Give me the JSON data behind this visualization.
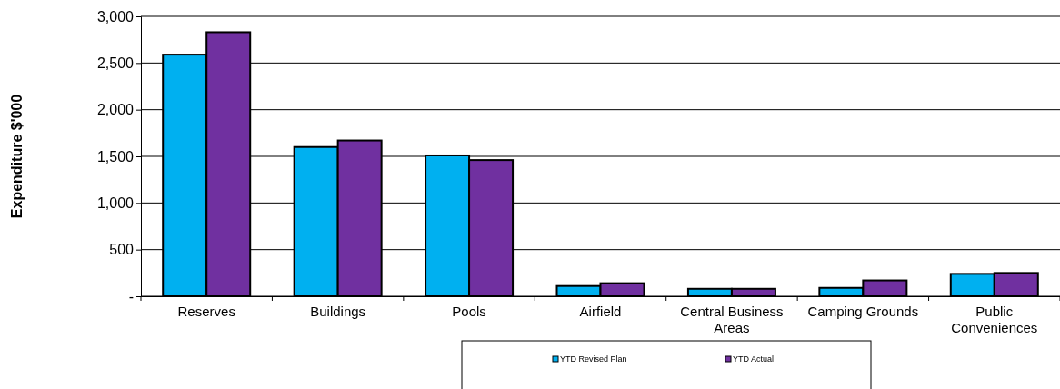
{
  "chart_data": {
    "type": "bar",
    "ylabel": "Expenditure $'000",
    "categories": [
      "Reserves",
      "Buildings",
      "Pools",
      "Airfield",
      "Central Business Areas",
      "Camping Grounds",
      "Public Conveniences"
    ],
    "series": [
      {
        "name": "YTD Revised Plan",
        "color": "#00b0f0",
        "values": [
          2590,
          1600,
          1510,
          110,
          80,
          90,
          240
        ]
      },
      {
        "name": "YTD Actual",
        "color": "#7030a0",
        "values": [
          2830,
          1670,
          1460,
          140,
          80,
          170,
          250
        ]
      }
    ],
    "ylim": [
      0,
      3000
    ],
    "yticks": [
      {
        "value": 0,
        "label": "-"
      },
      500,
      {
        "value": 1000,
        "label": "1,000"
      },
      {
        "value": 1500,
        "label": "1,500"
      },
      {
        "value": 2000,
        "label": "2,000"
      },
      {
        "value": 2500,
        "label": "2,500"
      },
      {
        "value": 3000,
        "label": "3,000"
      }
    ],
    "grid": "y",
    "legend": "bottom"
  }
}
